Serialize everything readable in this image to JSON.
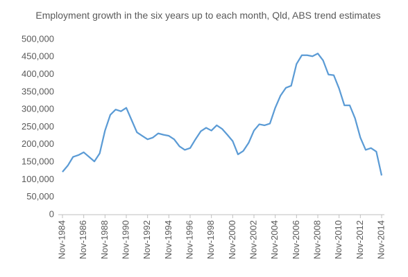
{
  "chart_data": {
    "type": "line",
    "title": "Employment growth in the six years up to each month, Qld, ABS trend estimates",
    "categories": [
      "Nov-1984",
      null,
      null,
      null,
      "Nov-1986",
      null,
      null,
      null,
      "Nov-1988",
      null,
      null,
      null,
      "Nov-1990",
      null,
      null,
      null,
      "Nov-1992",
      null,
      null,
      null,
      "Nov-1994",
      null,
      null,
      null,
      "Nov-1996",
      null,
      null,
      null,
      "Nov-1998",
      null,
      null,
      null,
      "Nov-2000",
      null,
      null,
      null,
      "Nov-2002",
      null,
      null,
      null,
      "Nov-2004",
      null,
      null,
      null,
      "Nov-2006",
      null,
      null,
      null,
      "Nov-2008",
      null,
      null,
      null,
      "Nov-2010",
      null,
      null,
      null,
      "Nov-2012",
      null,
      null,
      null,
      "Nov-2014"
    ],
    "values": [
      122000,
      140000,
      165000,
      170000,
      178000,
      165000,
      152000,
      175000,
      240000,
      285000,
      300000,
      295000,
      305000,
      270000,
      235000,
      225000,
      215000,
      220000,
      232000,
      228000,
      225000,
      215000,
      195000,
      185000,
      190000,
      215000,
      238000,
      248000,
      240000,
      255000,
      245000,
      228000,
      210000,
      172000,
      182000,
      205000,
      240000,
      258000,
      255000,
      260000,
      305000,
      340000,
      362000,
      368000,
      430000,
      455000,
      455000,
      452000,
      460000,
      440000,
      400000,
      398000,
      360000,
      312000,
      312000,
      275000,
      220000,
      185000,
      190000,
      180000,
      112000
    ],
    "color": "#5b9bd5",
    "ylim": [
      0,
      500000
    ],
    "yticks": [
      0,
      {
        "value": 50000,
        "label": "50,000"
      },
      {
        "value": 100000,
        "label": "100,000"
      },
      {
        "value": 150000,
        "label": "150,000"
      },
      {
        "value": 200000,
        "label": "200,000"
      },
      {
        "value": 250000,
        "label": "250,000"
      },
      {
        "value": 300000,
        "label": "300,000"
      },
      {
        "value": 350000,
        "label": "350,000"
      },
      {
        "value": 400000,
        "label": "400,000"
      },
      {
        "value": 450000,
        "label": "450,000"
      },
      {
        "value": 500000,
        "label": "500,000"
      }
    ]
  }
}
